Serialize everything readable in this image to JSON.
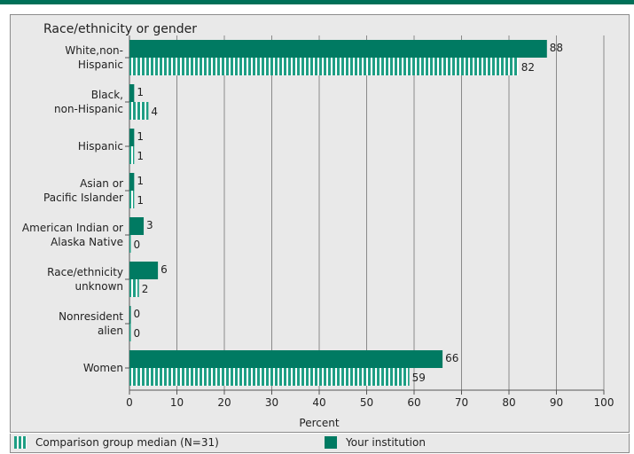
{
  "chart_data": {
    "type": "bar",
    "orientation": "horizontal",
    "title": "Race/ethnicity or gender",
    "xlabel": "Percent",
    "ylabel": "",
    "xlim": [
      0,
      100
    ],
    "x_ticks": [
      0,
      10,
      20,
      30,
      40,
      50,
      60,
      70,
      80,
      90,
      100
    ],
    "grid": true,
    "categories": [
      [
        "White,non-",
        "Hispanic"
      ],
      [
        "Black,",
        "non-Hispanic"
      ],
      [
        "Hispanic"
      ],
      [
        "Asian or",
        "Pacific Islander"
      ],
      [
        "American Indian or",
        "Alaska Native"
      ],
      [
        "Race/ethnicity",
        "unknown"
      ],
      [
        "Nonresident",
        "alien"
      ],
      [
        "Women"
      ]
    ],
    "series": [
      {
        "name": "Your institution",
        "style": "solid",
        "color": "#007a62",
        "values": [
          88,
          1,
          1,
          1,
          3,
          6,
          0,
          66
        ]
      },
      {
        "name": "Comparison group median (N=31)",
        "style": "striped",
        "color": "#1e9e84",
        "values": [
          82,
          4,
          1,
          1,
          0,
          2,
          0,
          59
        ]
      }
    ],
    "legend_position": "bottom"
  },
  "legend": {
    "comparison_label": "Comparison group median (N=31)",
    "institution_label": "Your institution"
  }
}
